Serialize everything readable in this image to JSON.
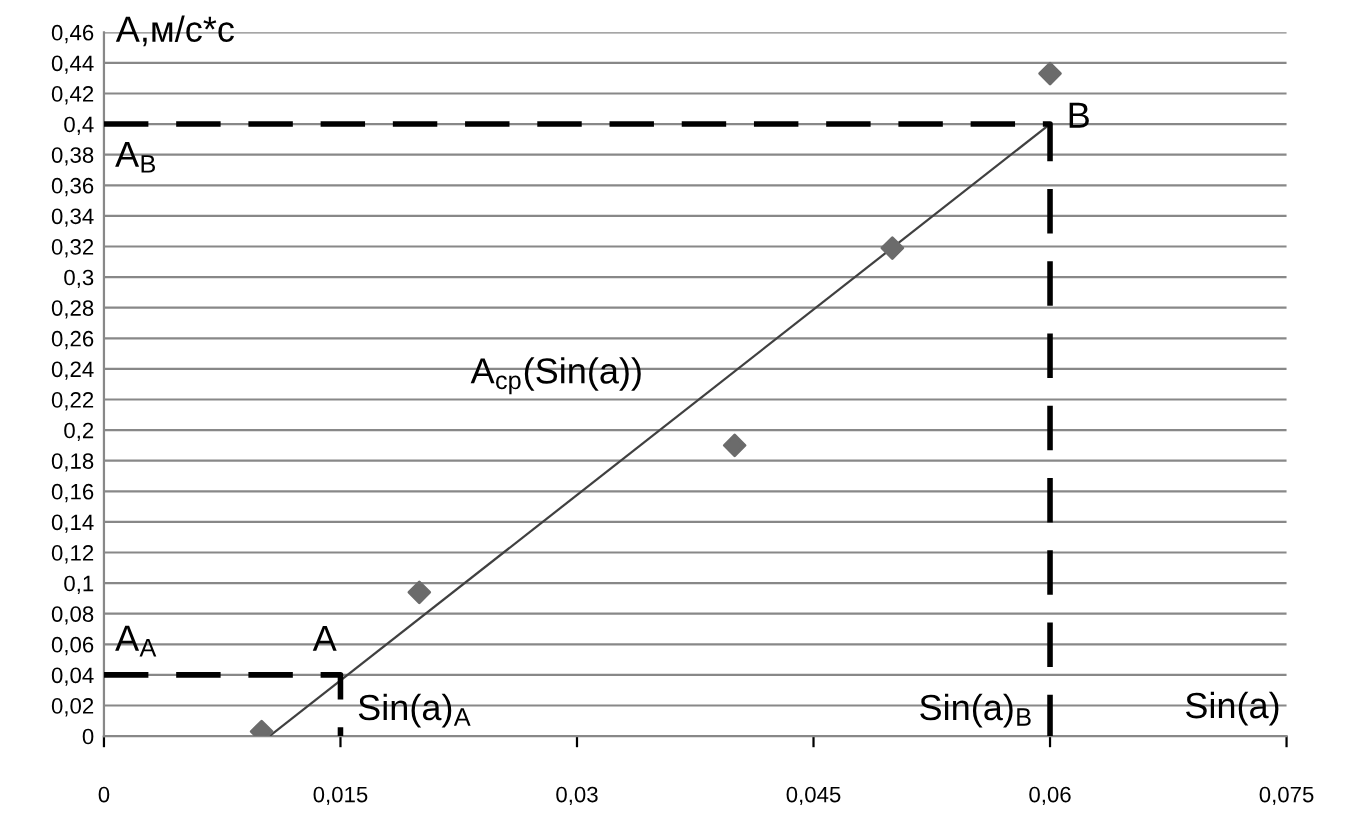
{
  "chart_data": {
    "type": "scatter",
    "xlabel": "Sin(a)",
    "ylabel": "A,м/с*с",
    "series": [
      {
        "color": "#6b6b6b",
        "marker": "diamond",
        "x": [
          0.01,
          0.02,
          0.04,
          0.05,
          0.06
        ],
        "values": [
          0.003,
          0.094,
          0.19,
          0.319,
          0.433
        ]
      },
      {
        "type": "line",
        "color": "#404040",
        "marker": "none",
        "line_style": "solid",
        "x": [
          0.0105,
          0.06
        ],
        "values": [
          0,
          0.4
        ]
      },
      {
        "type": "line",
        "color": "#000000",
        "marker": "none",
        "line_style": "dashed",
        "x": [
          0,
          0.06,
          0.06
        ],
        "values": [
          0.4,
          0.4,
          0
        ]
      },
      {
        "type": "line",
        "color": "#000000",
        "marker": "none",
        "line_style": "dashed",
        "x": [
          0,
          0.015,
          0.015
        ],
        "values": [
          0.04,
          0.04,
          0
        ]
      }
    ],
    "annotations": [
      {
        "text": "A",
        "x": 0.015,
        "y": 0.04
      },
      {
        "text": "B",
        "x": 0.06,
        "y": 0.4
      },
      {
        "text": "A$_{A}$",
        "x": 0,
        "y": 0.04
      },
      {
        "text": "A$_{B}$",
        "x": 0,
        "y": 0.4
      },
      {
        "text": "Sin(a)$_{A}$",
        "x": 0.015,
        "y": 0
      },
      {
        "text": "Sin(a)$_{B}$",
        "x": 0.06,
        "y": 0
      },
      "A$_{ср}$(Sin(a))"
    ],
    "xlim": [
      0,
      0.075
    ],
    "xticks": [
      0,
      {
        "value": 0.015,
        "label": "0,015"
      },
      {
        "value": 0.03,
        "label": "0,03"
      },
      {
        "value": 0.045,
        "label": "0,045"
      },
      {
        "value": 0.06,
        "label": "0,06"
      },
      {
        "value": 0.075,
        "label": "0,075"
      }
    ],
    "ylim": [
      0,
      0.46
    ],
    "yticks": [
      0,
      {
        "value": 0.02,
        "label": "0,02"
      },
      {
        "value": 0.04,
        "label": "0,04"
      },
      {
        "value": 0.06,
        "label": "0,06"
      },
      {
        "value": 0.08,
        "label": "0,08"
      },
      {
        "value": 0.1,
        "label": "0,1"
      },
      {
        "value": 0.12,
        "label": "0,12"
      },
      {
        "value": 0.14,
        "label": "0,14"
      },
      {
        "value": 0.16,
        "label": "0,16"
      },
      {
        "value": 0.18,
        "label": "0,18"
      },
      {
        "value": 0.2,
        "label": "0,2"
      },
      {
        "value": 0.22,
        "label": "0,22"
      },
      {
        "value": 0.24,
        "label": "0,24"
      },
      {
        "value": 0.26,
        "label": "0,26"
      },
      {
        "value": 0.28,
        "label": "0,28"
      },
      {
        "value": 0.3,
        "label": "0,3"
      },
      {
        "value": 0.32,
        "label": "0,32"
      },
      {
        "value": 0.34,
        "label": "0,34"
      },
      {
        "value": 0.36,
        "label": "0,36"
      },
      {
        "value": 0.38,
        "label": "0,38"
      },
      {
        "value": 0.4,
        "label": "0,4"
      },
      {
        "value": 0.42,
        "label": "0,42"
      },
      {
        "value": 0.44,
        "label": "0,44"
      },
      {
        "value": 0.46,
        "label": "0,46"
      }
    ],
    "grid": "y",
    "legend": false
  }
}
